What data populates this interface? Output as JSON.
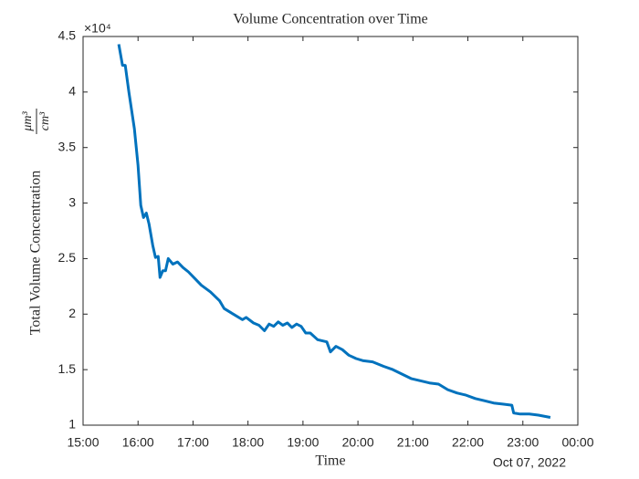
{
  "chart_data": {
    "type": "line",
    "title": "Volume Concentration over Time",
    "xlabel": "Time",
    "ylabel": "Total Volume Concentration",
    "ylabel_unit_numerator": "μm³",
    "ylabel_unit_denominator": "cm³",
    "y_exponent_label": "×10⁴",
    "date_label": "Oct 07, 2022",
    "x": [
      "15:39",
      "15:43",
      "15:46",
      "15:50",
      "15:56",
      "16:00",
      "16:03",
      "16:06",
      "16:09",
      "16:12",
      "16:16",
      "16:19",
      "16:22",
      "16:24",
      "16:27",
      "16:30",
      "16:33",
      "16:38",
      "16:43",
      "16:49",
      "16:55",
      "17:02",
      "17:09",
      "17:19",
      "17:29",
      "17:34",
      "17:44",
      "17:54",
      "17:58",
      "18:06",
      "18:12",
      "18:18",
      "18:23",
      "18:28",
      "18:33",
      "18:38",
      "18:43",
      "18:48",
      "18:53",
      "18:58",
      "19:03",
      "19:08",
      "19:16",
      "19:26",
      "19:30",
      "19:36",
      "19:43",
      "19:50",
      "19:58",
      "20:06",
      "20:16",
      "20:28",
      "20:38",
      "20:48",
      "20:58",
      "21:08",
      "21:18",
      "21:28",
      "21:38",
      "21:48",
      "21:58",
      "22:08",
      "22:18",
      "22:28",
      "22:38",
      "22:48",
      "22:50",
      "22:57",
      "23:07",
      "23:17",
      "23:30"
    ],
    "series": [
      {
        "name": "Total Volume Concentration",
        "color": "#0072bd",
        "values": [
          4.43,
          4.24,
          4.24,
          4.0,
          3.67,
          3.34,
          2.98,
          2.87,
          2.91,
          2.81,
          2.62,
          2.51,
          2.52,
          2.33,
          2.39,
          2.39,
          2.5,
          2.45,
          2.47,
          2.42,
          2.38,
          2.32,
          2.26,
          2.2,
          2.12,
          2.05,
          2.0,
          1.95,
          1.97,
          1.92,
          1.9,
          1.85,
          1.91,
          1.89,
          1.93,
          1.9,
          1.92,
          1.88,
          1.91,
          1.89,
          1.83,
          1.83,
          1.77,
          1.75,
          1.66,
          1.71,
          1.68,
          1.63,
          1.6,
          1.58,
          1.57,
          1.53,
          1.5,
          1.46,
          1.42,
          1.4,
          1.38,
          1.37,
          1.32,
          1.29,
          1.27,
          1.24,
          1.22,
          1.2,
          1.19,
          1.18,
          1.11,
          1.1,
          1.1,
          1.09,
          1.07
        ]
      }
    ],
    "xlim": [
      "15:00",
      "00:00"
    ],
    "xticks": [
      "15:00",
      "16:00",
      "17:00",
      "18:00",
      "19:00",
      "20:00",
      "21:00",
      "22:00",
      "23:00",
      "00:00"
    ],
    "ylim": [
      1,
      4.5
    ],
    "yticks": [
      1,
      1.5,
      2,
      2.5,
      3,
      3.5,
      4,
      4.5
    ],
    "grid": false
  }
}
